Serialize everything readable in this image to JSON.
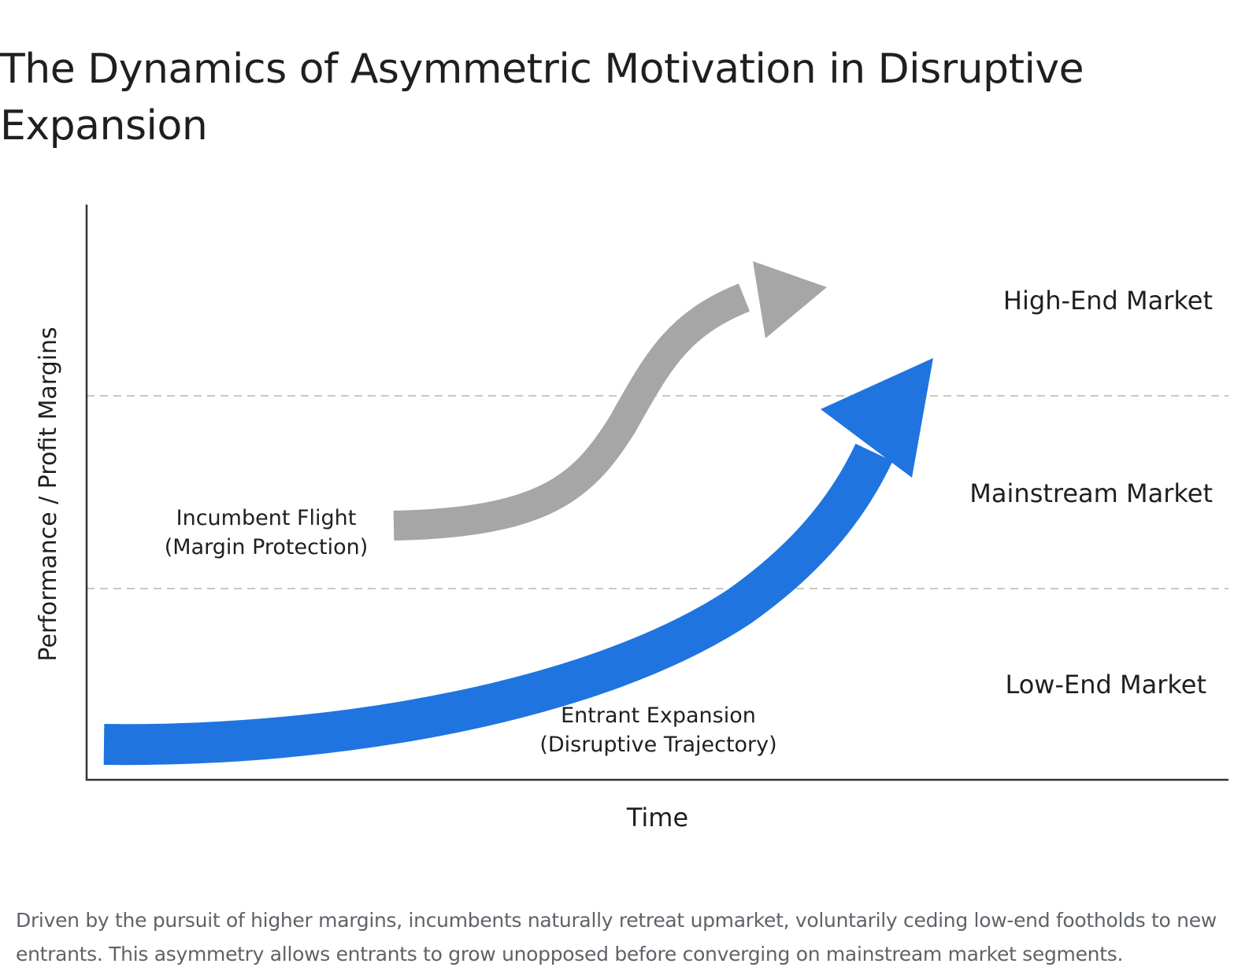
{
  "title": "The Dynamics of Asymmetric Motivation in Disruptive Expansion",
  "diagram": {
    "y_axis_label": "Performance / Profit Margins",
    "x_axis_label": "Time",
    "tiers": [
      {
        "label": "High-End Market"
      },
      {
        "label": "Mainstream Market"
      },
      {
        "label": "Low-End Market"
      }
    ],
    "incumbent": {
      "line1": "Incumbent Flight",
      "line2": "(Margin Protection)",
      "color": "#a6a6a6"
    },
    "entrant": {
      "line1": "Entrant Expansion",
      "line2": "(Disruptive Trajectory)",
      "color": "#1f74e0"
    },
    "axis_color": "#333333",
    "divider_color": "#c8c8c8"
  },
  "caption": "Driven by the pursuit of higher margins, incumbents naturally retreat upmarket, voluntarily ceding low-end footholds to new entrants. This asymmetry allows entrants to grow unopposed before converging on mainstream market segments."
}
